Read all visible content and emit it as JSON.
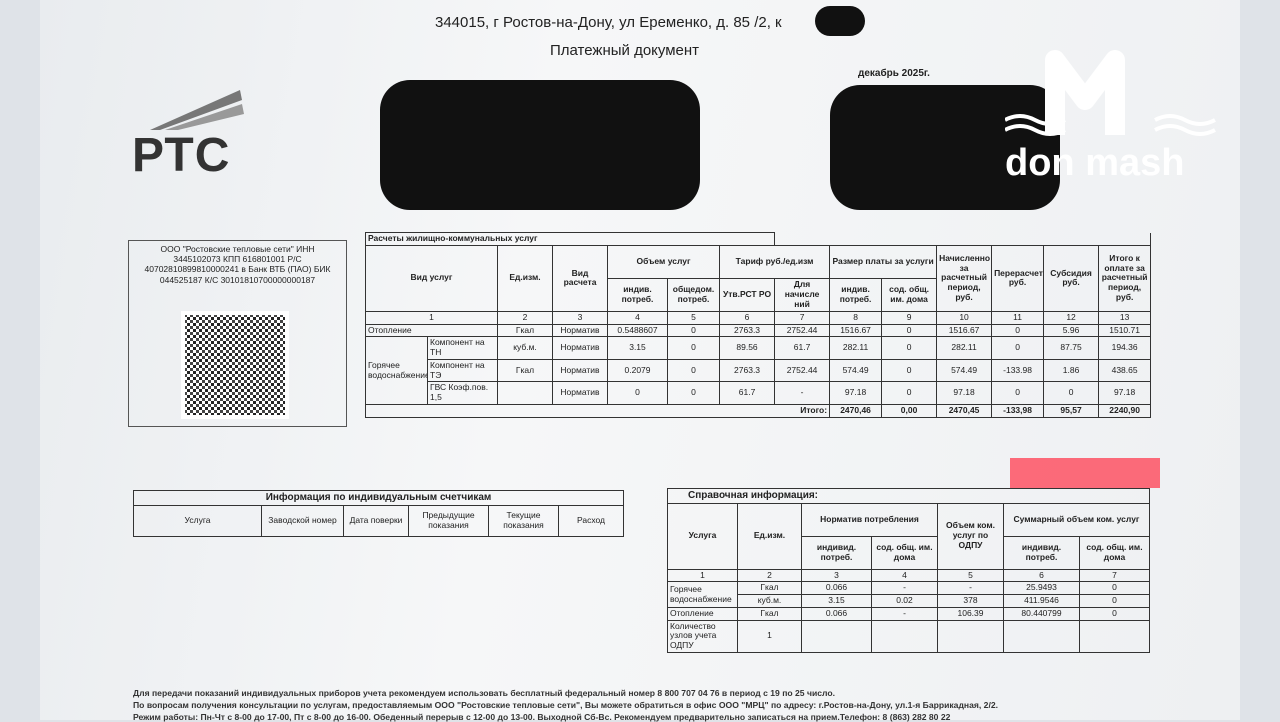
{
  "header": {
    "address": "344015, г Ростов-на-Дону, ул Еременко, д. 85 /2, к",
    "title": "Платежный документ",
    "period": "декабрь 2025г.",
    "logo": "РТС"
  },
  "watermark": "don mash",
  "payee": {
    "details": "ООО \"Ростовские тепловые сети\" ИНН 3445102073 КПП 616801001 Р/С 40702810899810000241 в Банк ВТБ (ПАО) БИК 044525187 К/С 30101810700000000187"
  },
  "charges": {
    "title": "Расчеты жилищно-коммунальных услуг",
    "headers": [
      "Вид услуг",
      "Ед.изм.",
      "Вид расчета",
      "Объем услуг",
      "Тариф руб./ед.изм",
      "Размер платы за услуги",
      "Начисленно за расчетный период, руб.",
      "Перерасчет, руб.",
      "Субсидия руб.",
      "Итого к оплате за расчетный период, руб."
    ],
    "subheaders": [
      "индив. потреб.",
      "общедом. потреб.",
      "Утв.РСТ РО",
      "Для начисле ний",
      "индив. потреб.",
      "сод. общ. им. дома"
    ],
    "numbers": [
      1,
      2,
      3,
      4,
      5,
      6,
      7,
      8,
      9,
      10,
      11,
      12,
      13
    ],
    "rows": [
      {
        "service": "Отопление",
        "cells": [
          "Гкал",
          "Норматив",
          "0.5488607",
          "0",
          "2763.3",
          "2752.44",
          "1516.67",
          "0",
          "1516.67",
          "0",
          "5.96",
          "1510.71"
        ]
      },
      {
        "service": "Горячее водоснабжение",
        "parts": [
          {
            "component": "Компонент на ТН",
            "cells": [
              "куб.м.",
              "Норматив",
              "3.15",
              "0",
              "89.56",
              "61.7",
              "282.11",
              "0",
              "282.11",
              "0",
              "87.75",
              "194.36"
            ]
          },
          {
            "component": "Компонент на ТЭ",
            "cells": [
              "Гкал",
              "Норматив",
              "0.2079",
              "0",
              "2763.3",
              "2752.44",
              "574.49",
              "0",
              "574.49",
              "-133.98",
              "1.86",
              "438.65"
            ]
          },
          {
            "component": "ГВС Коэф.пов. 1,5",
            "cells": [
              null,
              "Норматив",
              "0",
              "0",
              "61.7",
              "-",
              "97.18",
              "0",
              "97.18",
              "0",
              "0",
              "97.18"
            ]
          }
        ]
      }
    ],
    "total": {
      "label": "Итого:",
      "cells": [
        "2470,46",
        "0,00",
        "2470,45",
        "-133,98",
        "95,57",
        "2240,90"
      ]
    }
  },
  "meters": {
    "title": "Информация по индивидуальным счетчикам",
    "headers": [
      "Услуга",
      "Заводской номер",
      "Дата поверки",
      "Предыдущие показания",
      "Текущие показания",
      "Расход"
    ]
  },
  "reference": {
    "title": "Справочная информация:",
    "headers": [
      "Услуга",
      "Ед.изм.",
      "Норматив потребления",
      "Объем ком. услуг по ОДПУ",
      "Суммарный объем ком. услуг"
    ],
    "subheaders": [
      "индивид. потреб.",
      "сод. общ. им. дома",
      "индивид. потреб.",
      "сод. общ. им. дома"
    ],
    "numbers": [
      1,
      2,
      3,
      4,
      5,
      6,
      7
    ],
    "rows": [
      {
        "service": "Горячее водоснабжение",
        "parts": [
          {
            "cells": [
              "Гкал",
              "0.066",
              "-",
              "-",
              "25.9493",
              "0"
            ]
          },
          {
            "cells": [
              "куб.м.",
              "3.15",
              "0.02",
              "378",
              "411.9546",
              "0"
            ]
          }
        ]
      },
      {
        "service": "Отопление",
        "cells": [
          "Гкал",
          "0.066",
          "-",
          "106.39",
          "80.440799",
          "0"
        ]
      },
      {
        "service": "Количество узлов учета ОДПУ",
        "cells": [
          "1"
        ]
      }
    ]
  },
  "footer": [
    "Для передачи показаний индивидуальных приборов учета рекомендуем использовать бесплатный федеральный номер 8 800 707 04 76 в период с 19 по 25 число.",
    "По вопросам получения консультации по услугам, предоставляемым ООО \"Ростовские тепловые сети\", Вы можете обратиться в офис ООО \"МРЦ\" по адресу: г.Ростов-на-Дону, ул.1-я Баррикадная, 2/2.",
    "Режим работы: Пн-Чт с 8-00 до 17-00, Пт с 8-00 до 16-00. Обеденный перерыв с 12-00 до 13-00. Выходной Сб-Вс. Рекомендуем предварительно записаться на прием.Телефон: 8 (863) 282 80 22"
  ]
}
